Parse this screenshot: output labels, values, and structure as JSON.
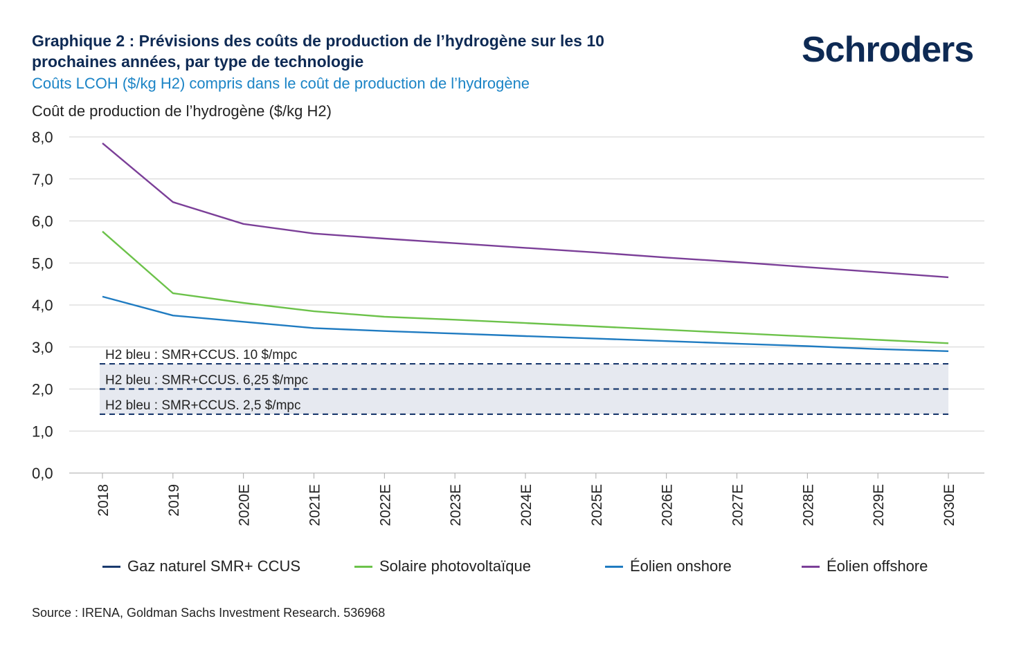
{
  "header": {
    "title": "Graphique 2 : Prévisions des coûts de production de l’hydrogène sur les 10 prochaines années, par type de technologie",
    "subtitle": "Coûts LCOH ($/kg H2) compris dans le coût de production de l’hydrogène",
    "logo_text": "Schroders"
  },
  "footer": {
    "source": "Source : IRENA, Goldman Sachs Investment Research. 536968"
  },
  "colors": {
    "navy": "#1a3a6e",
    "green": "#6cc24a",
    "blue": "#1f7bc1",
    "purple": "#7b3f98",
    "band": "#e6e9f0",
    "grid": "#d0d0d0"
  },
  "chart_data": {
    "type": "line",
    "title": "",
    "ylabel": "Coût de production de l’hydrogène ($/kg H2)",
    "xlabel": "",
    "ylim": [
      0,
      8
    ],
    "yticks": [
      "0,0",
      "1,0",
      "2,0",
      "3,0",
      "4,0",
      "5,0",
      "6,0",
      "7,0",
      "8,0"
    ],
    "grid": true,
    "legend_position": "bottom",
    "categories": [
      "2018",
      "2019",
      "2020E",
      "2021E",
      "2022E",
      "2023E",
      "2024E",
      "2025E",
      "2026E",
      "2027E",
      "2028E",
      "2029E",
      "2030E"
    ],
    "series": [
      {
        "name": "Solaire photovoltaïque",
        "color": "#6cc24a",
        "values": [
          5.75,
          4.28,
          4.05,
          3.85,
          3.72,
          3.65,
          3.57,
          3.49,
          3.41,
          3.33,
          3.25,
          3.17,
          3.09
        ]
      },
      {
        "name": "Éolien onshore",
        "color": "#1f7bc1",
        "values": [
          4.2,
          3.75,
          3.6,
          3.45,
          3.38,
          3.32,
          3.26,
          3.2,
          3.14,
          3.08,
          3.02,
          2.95,
          2.9
        ]
      },
      {
        "name": "Éolien offshore",
        "color": "#7b3f98",
        "values": [
          7.85,
          6.45,
          5.93,
          5.7,
          5.58,
          5.47,
          5.36,
          5.25,
          5.13,
          5.02,
          4.9,
          4.78,
          4.66
        ]
      }
    ],
    "reference_lines": {
      "name": "Gaz naturel SMR+ CCUS",
      "color": "#1a3a6e",
      "band": [
        1.4,
        2.6
      ],
      "lines": [
        {
          "value": 2.6,
          "label": "H2 bleu : SMR+CCUS. 10 $/mpc"
        },
        {
          "value": 2.0,
          "label": "H2 bleu : SMR+CCUS. 6,25 $/mpc"
        },
        {
          "value": 1.4,
          "label": "H2 bleu : SMR+CCUS. 2,5 $/mpc"
        }
      ]
    },
    "legend": [
      "Gaz naturel SMR+ CCUS",
      "Solaire photovoltaïque",
      "Éolien onshore",
      "Éolien offshore"
    ]
  }
}
